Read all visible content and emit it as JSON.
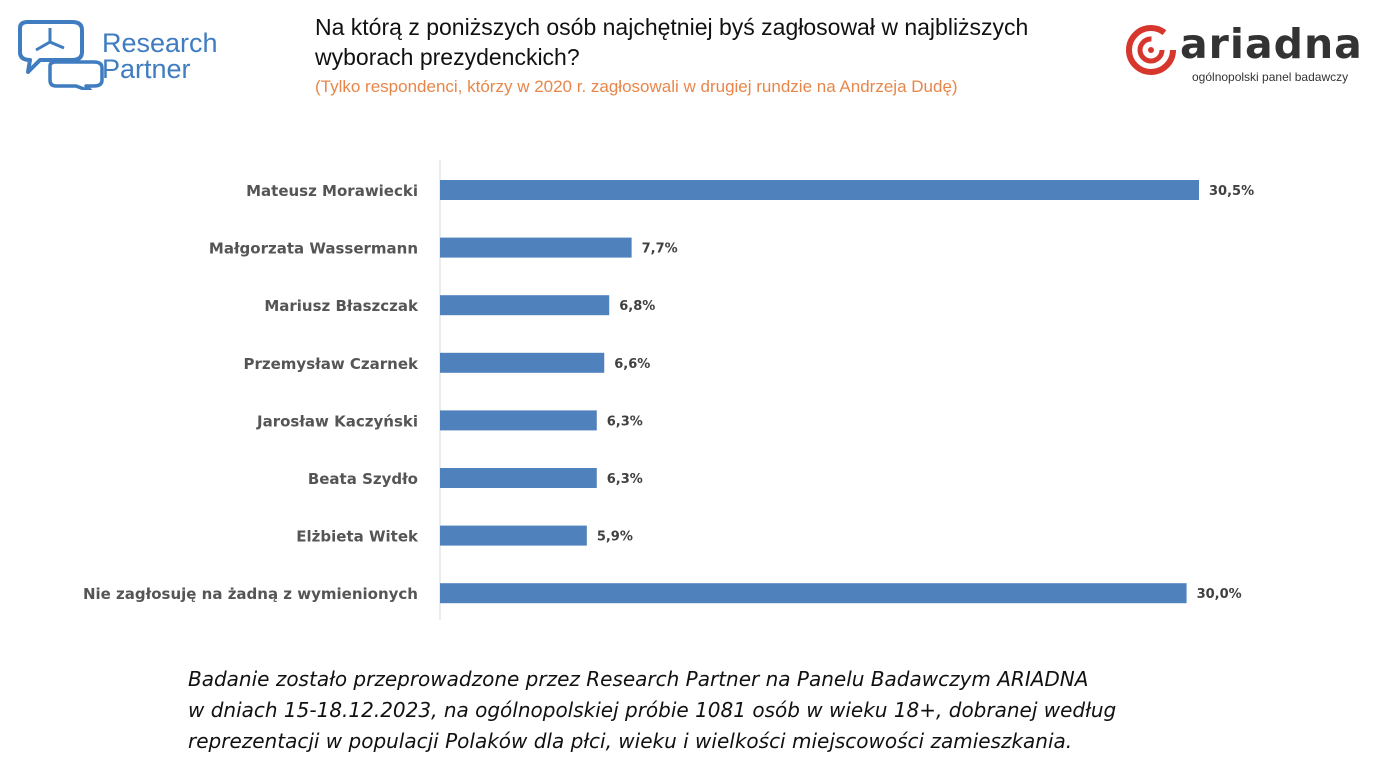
{
  "header": {
    "logo_left": {
      "line1": "Research",
      "line2": "Partner",
      "color": "#3f7cc0"
    },
    "title_line1": "Na którą z poniższych osób najchętniej byś zagłosował w najbliższych",
    "title_line2": "wyborach prezydenckich?",
    "subtitle": "(Tylko respondenci, którzy w 2020 r. zagłosowali w drugiej rundzie na Andrzeja Dudę)",
    "subtitle_color": "#e8864a",
    "logo_right": {
      "name": "ariadna",
      "tagline": "ogólnopolski panel badawczy",
      "accent": "#d6362c"
    }
  },
  "chart_data": {
    "type": "bar",
    "orientation": "horizontal",
    "categories": [
      "Mateusz Morawiecki",
      "Małgorzata Wassermann",
      "Mariusz Błaszczak",
      "Przemysław Czarnek",
      "Jarosław Kaczyński",
      "Beata Szydło",
      "Elżbieta Witek",
      "Nie zagłosuję na żadną z wymienionych"
    ],
    "values": [
      30.5,
      7.7,
      6.8,
      6.6,
      6.3,
      6.3,
      5.9,
      30.0
    ],
    "value_labels": [
      "30,5%",
      "7,7%",
      "6,8%",
      "6,6%",
      "6,3%",
      "6,3%",
      "5,9%",
      "30,0%"
    ],
    "xlim": [
      0,
      35
    ],
    "grid": false,
    "bar_color": "#4f81bd"
  },
  "footer": {
    "line1": "Badanie zostało przeprowadzone przez Research Partner na Panelu Badawczym ARIADNA",
    "line2": "w dniach 15-18.12.2023, na ogólnopolskiej próbie 1081 osób w wieku 18+, dobranej według",
    "line3": "reprezentacji w populacji Polaków dla płci, wieku i wielkości miejscowości zamieszkania."
  }
}
